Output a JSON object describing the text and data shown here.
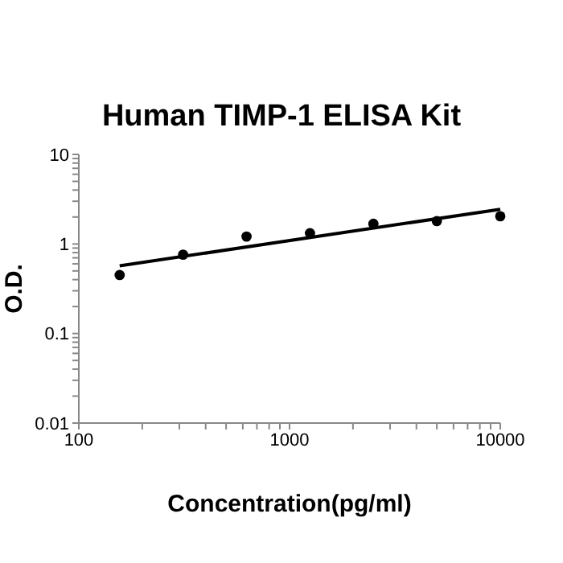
{
  "chart_data": {
    "type": "scatter",
    "title": "Human TIMP-1 ELISA Kit",
    "xlabel": "Concentration(pg/ml)",
    "ylabel": "O.D.",
    "series": [
      {
        "marker": "circle",
        "color": "#000000",
        "x": [
          156.25,
          312.5,
          625,
          1250,
          2500,
          5000,
          10000
        ],
        "values": [
          0.45,
          0.76,
          1.21,
          1.32,
          1.68,
          1.8,
          2.04
        ]
      },
      {
        "type": "line",
        "marker": "none",
        "color": "#000000",
        "x": [
          156.25,
          10000
        ],
        "values": [
          0.57,
          2.44
        ]
      }
    ],
    "log": "xy",
    "xlim": [
      100,
      10000
    ],
    "ylim": [
      0.01,
      10
    ],
    "xticks": [
      100,
      {
        "value": 200,
        "label": null
      },
      {
        "value": 300,
        "label": null
      },
      {
        "value": 400,
        "label": null
      },
      {
        "value": 500,
        "label": null
      },
      {
        "value": 600,
        "label": null
      },
      {
        "value": 700,
        "label": null
      },
      {
        "value": 800,
        "label": null
      },
      {
        "value": 900,
        "label": null
      },
      1000,
      {
        "value": 2000,
        "label": null
      },
      {
        "value": 3000,
        "label": null
      },
      {
        "value": 4000,
        "label": null
      },
      {
        "value": 5000,
        "label": null
      },
      {
        "value": 6000,
        "label": null
      },
      {
        "value": 7000,
        "label": null
      },
      {
        "value": 8000,
        "label": null
      },
      {
        "value": 9000,
        "label": null
      },
      10000
    ],
    "yticks": [
      0.01,
      {
        "value": 0.02,
        "label": null
      },
      {
        "value": 0.03,
        "label": null
      },
      {
        "value": 0.04,
        "label": null
      },
      {
        "value": 0.05,
        "label": null
      },
      {
        "value": 0.06,
        "label": null
      },
      {
        "value": 0.07,
        "label": null
      },
      {
        "value": 0.08,
        "label": null
      },
      {
        "value": 0.09,
        "label": null
      },
      0.1,
      {
        "value": 0.2,
        "label": null
      },
      {
        "value": 0.3,
        "label": null
      },
      {
        "value": 0.4,
        "label": null
      },
      {
        "value": 0.5,
        "label": null
      },
      {
        "value": 0.6,
        "label": null
      },
      {
        "value": 0.7,
        "label": null
      },
      {
        "value": 0.8,
        "label": null
      },
      {
        "value": 0.9,
        "label": null
      },
      1,
      {
        "value": 2,
        "label": null
      },
      {
        "value": 3,
        "label": null
      },
      {
        "value": 4,
        "label": null
      },
      {
        "value": 5,
        "label": null
      },
      {
        "value": 6,
        "label": null
      },
      {
        "value": 7,
        "label": null
      },
      {
        "value": 8,
        "label": null
      },
      {
        "value": 9,
        "label": null
      },
      10
    ],
    "grid": false,
    "line_style": "solid"
  }
}
